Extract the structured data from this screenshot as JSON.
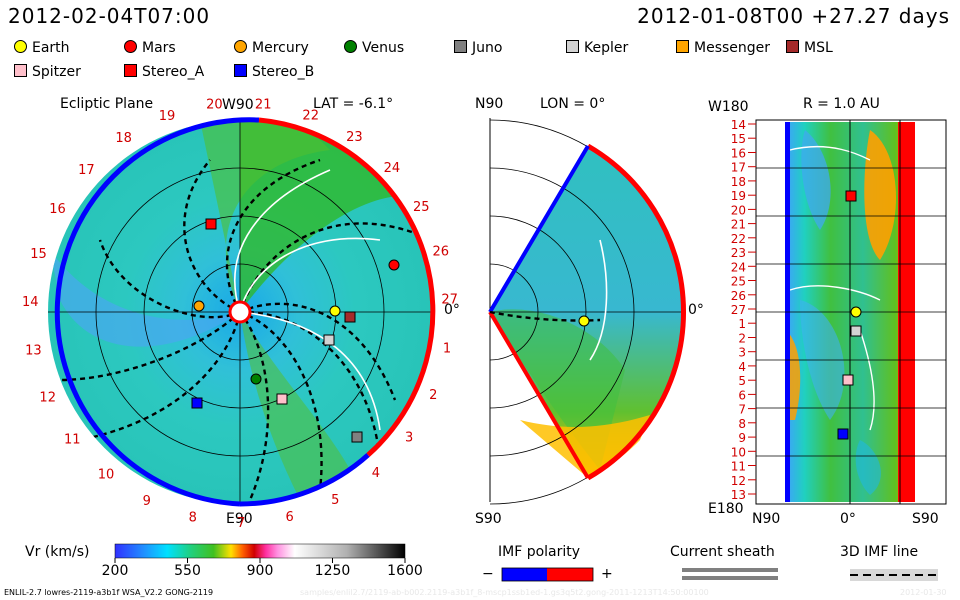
{
  "header": {
    "left_time": "2012-02-04T07:00",
    "right_time": "2012-01-08T00 +27.27 days"
  },
  "legend": [
    {
      "name": "Earth",
      "shape": "circle",
      "color": "#ffff00"
    },
    {
      "name": "Mars",
      "shape": "circle",
      "color": "#ff0000"
    },
    {
      "name": "Mercury",
      "shape": "circle",
      "color": "#ffa500"
    },
    {
      "name": "Venus",
      "shape": "circle",
      "color": "#008000"
    },
    {
      "name": "Juno",
      "shape": "square",
      "color": "#808080"
    },
    {
      "name": "Kepler",
      "shape": "square",
      "color": "#d3d3d3"
    },
    {
      "name": "Messenger",
      "shape": "square",
      "color": "#ffa500"
    },
    {
      "name": "MSL",
      "shape": "square",
      "color": "#a52a2a"
    },
    {
      "name": "Spitzer",
      "shape": "square",
      "color": "#ffc0cb"
    },
    {
      "name": "Stereo_A",
      "shape": "square",
      "color": "#ff0000"
    },
    {
      "name": "Stereo_B",
      "shape": "square",
      "color": "#0000ff"
    }
  ],
  "panel1": {
    "title": "Ecliptic Plane",
    "lat": "LAT = -6.1°",
    "top_label": "W90",
    "bottom_label": "E90",
    "right_label": "0°",
    "rim_numbers": [
      "20",
      "21",
      "22",
      "23",
      "24",
      "25",
      "26",
      "27",
      "1",
      "2",
      "3",
      "4",
      "5",
      "6",
      "7",
      "8",
      "9",
      "10",
      "11",
      "12",
      "13",
      "14",
      "15",
      "16",
      "17",
      "18",
      "19"
    ]
  },
  "panel2": {
    "title": "LON = 0°",
    "top_label": "N90",
    "bottom_label": "S90",
    "right_label": "0°"
  },
  "panel3": {
    "title": "R = 1.0 AU",
    "top_left": "W180",
    "bottom_left": "E180",
    "x_labels": [
      "N90",
      "0°",
      "S90"
    ],
    "y_labels": [
      "14",
      "15",
      "16",
      "17",
      "18",
      "19",
      "20",
      "21",
      "22",
      "23",
      "24",
      "25",
      "26",
      "27",
      "1",
      "2",
      "3",
      "4",
      "5",
      "6",
      "7",
      "8",
      "9",
      "10",
      "11",
      "12",
      "13"
    ]
  },
  "colorbar": {
    "title": "Vr (km/s)",
    "ticks": [
      "200",
      "550",
      "900",
      "1250",
      "1600"
    ]
  },
  "imf": {
    "title": "IMF polarity",
    "minus": "−",
    "plus": "+"
  },
  "sheath": {
    "title": "Current sheath"
  },
  "imf3d": {
    "title": "3D IMF line"
  },
  "footer": {
    "model": "ENLIL-2.7 lowres-2119-a3b1f WSA_V2.2 GONG-2119",
    "path": "samples/enlil2.7/2119-ab-b002.2119-a3b1f_8-mscp1ssb1ed-1.gs3q5t2.gong-2011-1213T14:50:00100",
    "date": "2012-01-30"
  },
  "colors": {
    "positive": "#ff0000",
    "negative": "#0000ff",
    "sw_base": "#20c8c0",
    "sw_fast": "#00b000"
  }
}
